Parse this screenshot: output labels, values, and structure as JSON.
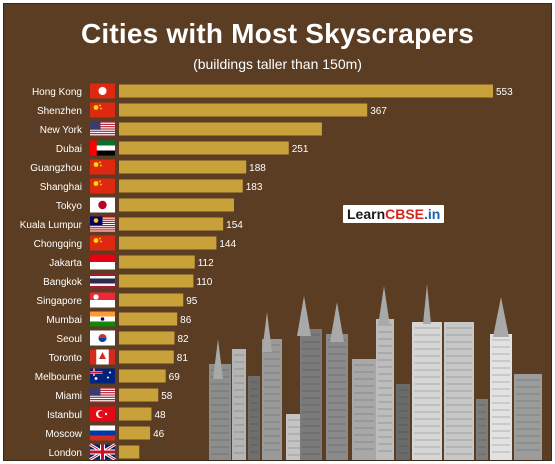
{
  "chart_data": {
    "type": "bar",
    "orientation": "horizontal",
    "title": "Cities with Most Skyscrapers",
    "subtitle": "(buildings taller than 150m)",
    "categories": [
      "Hong Kong",
      "Shenzhen",
      "New York",
      "Dubai",
      "Guangzhou",
      "Shanghai",
      "Tokyo",
      "Kuala Lumpur",
      "Chongqing",
      "Jakarta",
      "Bangkok",
      "Singapore",
      "Mumbai",
      "Seoul",
      "Toronto",
      "Melbourne",
      "Miami",
      "Istanbul",
      "Moscow",
      "London"
    ],
    "values": [
      553,
      367,
      300,
      251,
      188,
      183,
      170,
      154,
      144,
      112,
      110,
      95,
      86,
      82,
      81,
      69,
      58,
      48,
      46,
      30
    ],
    "value_labels": [
      "553",
      "367",
      "",
      "251",
      "188",
      "183",
      "",
      "154",
      "144",
      "112",
      "110",
      "95",
      "86",
      "82",
      "81",
      "69",
      "58",
      "48",
      "46",
      ""
    ],
    "flags": [
      "hong-kong-flag",
      "china-flag",
      "usa-flag",
      "uae-flag",
      "china-flag",
      "china-flag",
      "japan-flag",
      "malaysia-flag",
      "china-flag",
      "indonesia-flag",
      "thailand-flag",
      "singapore-flag",
      "india-flag",
      "south-korea-flag",
      "canada-flag",
      "australia-flag",
      "usa-flag",
      "turkey-flag",
      "russia-flag",
      "uk-flag"
    ],
    "bar_color": "#c9a13a",
    "background_color": "#5a3d22",
    "text_color": "#ffffff",
    "grid": false,
    "legend": "none"
  },
  "watermark": {
    "part1": "Learn",
    "part2": "CBSE",
    "part3": ".in"
  }
}
